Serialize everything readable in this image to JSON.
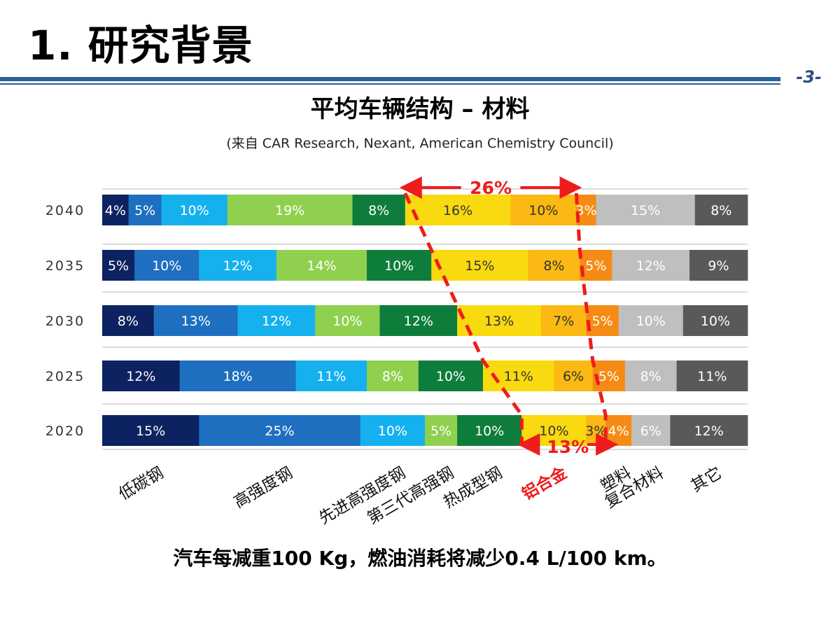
{
  "slide": {
    "title": "1. 研究背景",
    "page_number": "-3-",
    "footnote": "汽车每减重100 Kg，燃油消耗将减少0.4 L/100 km。"
  },
  "chart_data": {
    "type": "bar",
    "orientation": "horizontal",
    "stacked": true,
    "normalized_percent": true,
    "title": "平均车辆结构 – 材料",
    "subtitle": "(来自 CAR Research, Nexant, American Chemistry Council)",
    "categories": [
      "2040",
      "2035",
      "2030",
      "2025",
      "2020"
    ],
    "grid": true,
    "legend": "bottom",
    "series": [
      {
        "name": "低碳钢",
        "color": "#0d2260",
        "values": [
          4,
          5,
          8,
          12,
          15
        ]
      },
      {
        "name": "高强度钢",
        "color": "#1f6fc1",
        "values": [
          5,
          10,
          13,
          18,
          25
        ]
      },
      {
        "name": "先进高强度钢",
        "color": "#15b1ef",
        "values": [
          10,
          12,
          12,
          11,
          10
        ]
      },
      {
        "name": "第三代高强钢",
        "color": "#8fd14f",
        "values": [
          19,
          14,
          10,
          8,
          5
        ]
      },
      {
        "name": "热成型钢",
        "color": "#0e7d3c",
        "values": [
          8,
          10,
          12,
          10,
          10
        ]
      },
      {
        "name": "铝合金",
        "color": "#f9d90f",
        "values": [
          16,
          15,
          13,
          11,
          10
        ],
        "highlight": true
      },
      {
        "name": "",
        "color": "#fcb813",
        "values": [
          10,
          8,
          7,
          6,
          3
        ]
      },
      {
        "name": "塑料",
        "color": "#f58b14",
        "values": [
          3,
          5,
          5,
          5,
          4
        ]
      },
      {
        "name": "复合材料",
        "color": "#bfbfbf",
        "values": [
          15,
          12,
          10,
          8,
          6
        ]
      },
      {
        "name": "其它",
        "color": "#595959",
        "values": [
          8,
          9,
          10,
          11,
          12
        ]
      }
    ],
    "value_labels": [
      [
        "4%",
        "5%",
        "10%",
        "19%",
        "8%",
        "16%",
        "10%",
        "3%",
        "15%",
        "8%"
      ],
      [
        "5%",
        "10%",
        "12%",
        "14%",
        "10%",
        "15%",
        "8%",
        "5%",
        "12%",
        "9%"
      ],
      [
        "8%",
        "13%",
        "12%",
        "10%",
        "12%",
        "13%",
        "7%",
        "5%",
        "10%",
        "10%"
      ],
      [
        "12%",
        "18%",
        "11%",
        "8%",
        "10%",
        "11%",
        "6%",
        "5%",
        "8%",
        "11%"
      ],
      [
        "15%",
        "25%",
        "10%",
        "5%",
        "10%",
        "10%",
        "3%",
        "4%",
        "6%",
        "12%"
      ]
    ],
    "annotations": {
      "top_arrow_label": "26%",
      "bottom_arrow_label": "13%",
      "highlight_color": "#ee1c1c"
    }
  }
}
